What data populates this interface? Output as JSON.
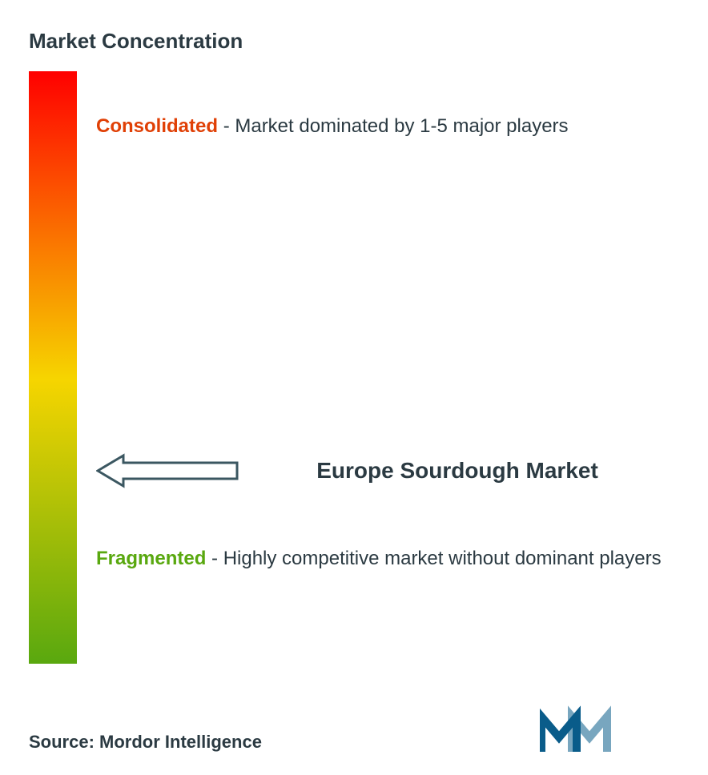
{
  "title": "Market Concentration",
  "gradient": {
    "top_color": "#ff0000",
    "mid_color": "#f6d500",
    "bottom_color": "#59a80f"
  },
  "consolidated": {
    "keyword": "Consolidated",
    "keyword_color": "#e04006",
    "description": "- Market dominated by 1-5 major players",
    "description_color": "#2b3a42",
    "top_percent": 7
  },
  "arrow": {
    "stroke_color": "#3b5761",
    "top_percent": 64
  },
  "market_name": "Europe Sourdough Market",
  "market_name_color": "#2b3a42",
  "fragmented": {
    "keyword": "Fragmented",
    "keyword_color": "#59a80f",
    "description": "- Highly competitive market without dominant players",
    "description_color": "#2b3a42",
    "top_percent": 80
  },
  "source": {
    "text": "Source: Mordor Intelligence",
    "color": "#2b3a42"
  },
  "logo": {
    "color": "#0a5c8a"
  }
}
